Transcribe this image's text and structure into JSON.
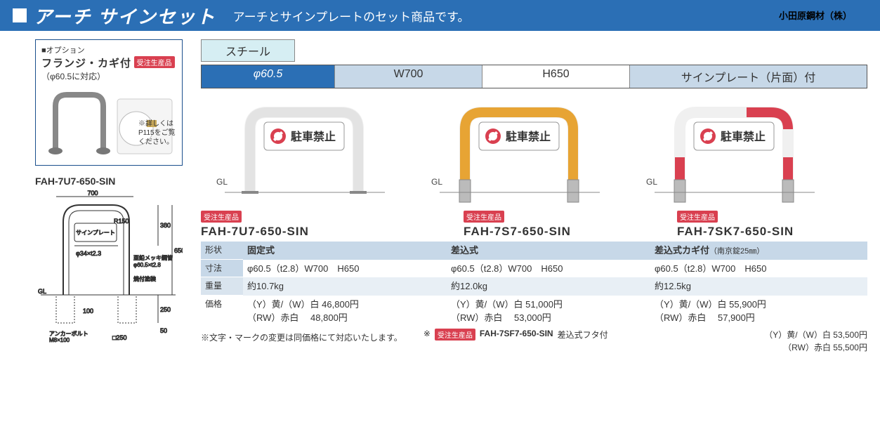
{
  "header": {
    "title": "アーチ サインセット",
    "subtitle": "アーチとサインプレートのセット商品です。",
    "company": "小田原鋼材（株）"
  },
  "option": {
    "label": "■オプション",
    "title": "フランジ・カギ付",
    "badge": "受注生産品",
    "sub": "（φ60.5に対応）",
    "note": "※詳しくはP115をご覧ください。"
  },
  "drawing": {
    "title": "FAH-7U7-650-SIN",
    "w": "700",
    "r": "R150",
    "label_plate": "サインプレート",
    "pipe_inner": "φ34×t2.3",
    "pipe_outer": "亜鉛メッキ鋼管\nφ60.5×t2.8",
    "finish": "焼付塗装",
    "h1": "380",
    "h2": "650",
    "h3": "250",
    "gap": "100",
    "d": "50",
    "anchor": "アンカーボルト\nM8×100",
    "base": "□250",
    "gl": "GL"
  },
  "material": "スチール",
  "spec_row": {
    "c1": "φ60.5",
    "c2": "W700",
    "c3": "H650",
    "c4": "サインプレート（片面）付"
  },
  "sign_text": "駐車禁止",
  "gl": "GL",
  "badge": "受注生産品",
  "products": [
    {
      "name": "FAH-7U7-650-SIN",
      "shape": "固定式",
      "dim": "φ60.5（t2.8）W700　H650",
      "weight": "約10.7kg",
      "price1": "（Y）黄/（W）白 46,800円",
      "price2": "（RW）赤白　 48,800円",
      "color": "#f0f0f0"
    },
    {
      "name": "FAH-7S7-650-SIN",
      "shape": "差込式",
      "dim": "φ60.5（t2.8）W700　H650",
      "weight": "約12.0kg",
      "price1": "（Y）黄/（W）白 51,000円",
      "price2": "（RW）赤白　 53,000円",
      "color": "#f5a623"
    },
    {
      "name": "FAH-7SK7-650-SIN",
      "shape": "差込式カギ付（南京錠25㎜）",
      "dim": "φ60.5（t2.8）W700　H650",
      "weight": "約12.5kg",
      "price1": "（Y）黄/（W）白 55,900円",
      "price2": "（RW）赤白　 57,900円",
      "color": "rw"
    }
  ],
  "table_labels": {
    "shape": "形状",
    "dim": "寸法",
    "weight": "重量",
    "price": "価格"
  },
  "note": "※文字・マークの変更は同価格にて対応いたします。",
  "extra": {
    "star": "※",
    "badge": "受注生産品",
    "name": "FAH-7SF7-650-SIN",
    "shape": "差込式フタ付",
    "price1": "（Y）黄/（W）白 53,500円",
    "price2": "（RW）赤白 55,500円"
  },
  "colors": {
    "blue": "#2b6fb5",
    "lightblue": "#c7d8e8",
    "red": "#d94050",
    "orange": "#f5a623"
  }
}
